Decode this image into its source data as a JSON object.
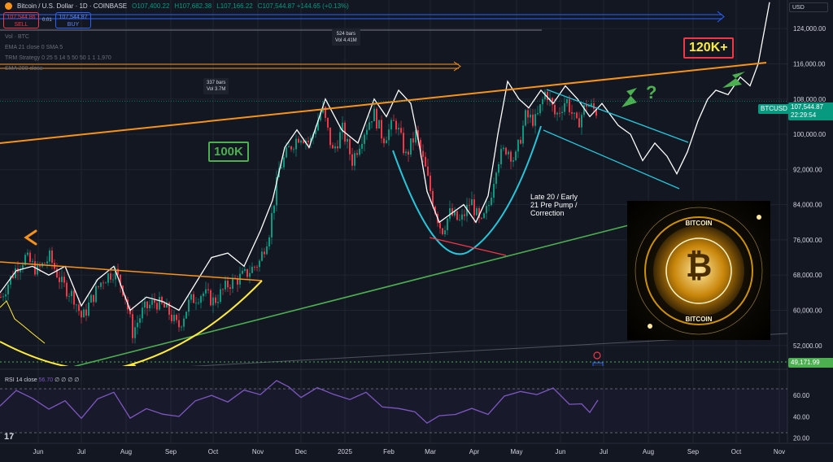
{
  "header": {
    "symbol": "Bitcoin / U.S. Dollar · 1D · COINBASE",
    "open": "O107,400.22",
    "high": "H107,682.38",
    "low": "L107,166.22",
    "close": "C107,544.87 +144.65 (+0.13%)"
  },
  "trade": {
    "sell_price": "107,544.86",
    "sell_label": "SELL",
    "spread": "0.01",
    "buy_price": "107,544.87",
    "buy_label": "BUY"
  },
  "indicators": {
    "vol": "Vol · BTC",
    "ema": "EMA 21 close 0 SMA 5",
    "trm": "TRM Strategy 0 25 5 14 5 50 50 1 1 1,970",
    "sma": "SMA 200 close"
  },
  "currency": "USD",
  "annotations": {
    "bars1": "524 bars",
    "vol1": "Vol 4.41M",
    "bars2": "337 bars",
    "vol2": "Vol 3.7M",
    "label_100k": "100K",
    "label_120k": "120K+",
    "question": "?",
    "note": "Late 20 / Early\n21 Pre Pump /\nCorrection",
    "coin_top": "BITCOIN",
    "coin_bottom": "BITCOIN",
    "coin_symbol": "₿"
  },
  "price_labels": {
    "symbol": "BTCUSD",
    "last": "107,544.87",
    "countdown": "22:29:54",
    "level": "49,171.99"
  },
  "rsi_header": {
    "title": "RSI 14 close",
    "value": "56.70",
    "extra": "∅ ∅ ∅ ∅"
  },
  "colors": {
    "bg": "#131722",
    "up": "#089981",
    "down": "#f23645",
    "orange": "#f7931a",
    "green": "#4caf50",
    "cyan": "#26c6da",
    "yellow": "#ffeb3b",
    "rsi": "#7e57c2"
  },
  "chart_data": {
    "type": "candlestick",
    "x_ticks": [
      "Jun",
      "Jul",
      "Aug",
      "Sep",
      "Oct",
      "Nov",
      "Dec",
      "2025",
      "Feb",
      "Mar",
      "Apr",
      "May",
      "Jun",
      "Jul",
      "Aug",
      "Sep",
      "Oct",
      "Nov"
    ],
    "y_ticks": [
      124000,
      116000,
      108000,
      100000,
      92000,
      84000,
      76000,
      68000,
      60000,
      52000
    ],
    "y_tick_labels": [
      "124,000.00",
      "116,000.00",
      "108,000.00",
      "100,000.00",
      "92,000.00",
      "84,000.00",
      "76,000.00",
      "68,000.00",
      "60,000.00",
      "52,000.00"
    ],
    "ylim": [
      46600,
      130500
    ],
    "last_price": 107544.87,
    "price_path": [
      [
        0,
        63000
      ],
      [
        20,
        70000
      ],
      [
        30,
        72000
      ],
      [
        45,
        69000
      ],
      [
        60,
        72000
      ],
      [
        75,
        66000
      ],
      [
        90,
        63000
      ],
      [
        100,
        58000
      ],
      [
        110,
        62000
      ],
      [
        125,
        67000
      ],
      [
        140,
        69000
      ],
      [
        152,
        64000
      ],
      [
        162,
        55000
      ],
      [
        175,
        60000
      ],
      [
        190,
        62000
      ],
      [
        205,
        60000
      ],
      [
        218,
        56000
      ],
      [
        232,
        62000
      ],
      [
        248,
        64000
      ],
      [
        262,
        62000
      ],
      [
        280,
        66000
      ],
      [
        300,
        68000
      ],
      [
        318,
        71000
      ],
      [
        330,
        78000
      ],
      [
        342,
        92000
      ],
      [
        355,
        97000
      ],
      [
        368,
        100000
      ],
      [
        380,
        98000
      ],
      [
        395,
        106000
      ],
      [
        408,
        96000
      ],
      [
        420,
        101000
      ],
      [
        432,
        94000
      ],
      [
        445,
        100000
      ],
      [
        458,
        105000
      ],
      [
        470,
        99000
      ],
      [
        485,
        103000
      ],
      [
        498,
        95000
      ],
      [
        510,
        100000
      ],
      [
        522,
        92000
      ],
      [
        532,
        84000
      ],
      [
        542,
        78000
      ],
      [
        552,
        82000
      ],
      [
        565,
        80000
      ],
      [
        578,
        85000
      ],
      [
        590,
        79000
      ],
      [
        600,
        84000
      ],
      [
        610,
        94000
      ],
      [
        622,
        97000
      ],
      [
        632,
        94000
      ],
      [
        645,
        104000
      ],
      [
        658,
        103000
      ],
      [
        670,
        110000
      ],
      [
        682,
        104000
      ],
      [
        695,
        108000
      ],
      [
        708,
        102000
      ],
      [
        720,
        107000
      ],
      [
        733,
        105000
      ]
    ],
    "overlay_line": [
      [
        0,
        64000
      ],
      [
        20,
        69000
      ],
      [
        40,
        70000
      ],
      [
        60,
        68000
      ],
      [
        80,
        70000
      ],
      [
        100,
        61000
      ],
      [
        120,
        67000
      ],
      [
        140,
        70000
      ],
      [
        160,
        60000
      ],
      [
        180,
        63000
      ],
      [
        200,
        62000
      ],
      [
        220,
        60000
      ],
      [
        240,
        66000
      ],
      [
        260,
        72000
      ],
      [
        280,
        73000
      ],
      [
        300,
        70000
      ],
      [
        320,
        78000
      ],
      [
        335,
        85000
      ],
      [
        350,
        97000
      ],
      [
        365,
        101000
      ],
      [
        380,
        97000
      ],
      [
        400,
        108000
      ],
      [
        420,
        101000
      ],
      [
        440,
        98000
      ],
      [
        460,
        108000
      ],
      [
        475,
        104000
      ],
      [
        490,
        110000
      ],
      [
        505,
        107000
      ],
      [
        515,
        98000
      ],
      [
        525,
        87000
      ],
      [
        540,
        80000
      ],
      [
        555,
        82000
      ],
      [
        570,
        84000
      ],
      [
        585,
        80000
      ],
      [
        600,
        86000
      ],
      [
        612,
        100000
      ],
      [
        624,
        112000
      ],
      [
        638,
        108000
      ],
      [
        650,
        106000
      ],
      [
        665,
        110000
      ],
      [
        680,
        107000
      ],
      [
        695,
        111000
      ],
      [
        710,
        108000
      ],
      [
        725,
        104000
      ],
      [
        740,
        107000
      ],
      [
        760,
        102000
      ],
      [
        775,
        100000
      ],
      [
        790,
        94000
      ],
      [
        805,
        98000
      ],
      [
        820,
        95000
      ],
      [
        832,
        91000
      ],
      [
        845,
        96000
      ],
      [
        858,
        103000
      ],
      [
        870,
        108000
      ],
      [
        880,
        110000
      ],
      [
        895,
        109000
      ],
      [
        910,
        113000
      ],
      [
        922,
        111000
      ],
      [
        932,
        116000
      ],
      [
        940,
        124000
      ],
      [
        946,
        130000
      ]
    ],
    "rsi": {
      "ylim": [
        15,
        80
      ],
      "y_ticks": [
        60,
        40,
        20
      ],
      "y_tick_labels": [
        "60.00",
        "40.00",
        "20.00"
      ],
      "values": [
        [
          0,
          50
        ],
        [
          20,
          62
        ],
        [
          40,
          55
        ],
        [
          60,
          48
        ],
        [
          80,
          58
        ],
        [
          100,
          40
        ],
        [
          120,
          55
        ],
        [
          140,
          60
        ],
        [
          160,
          38
        ],
        [
          180,
          50
        ],
        [
          200,
          45
        ],
        [
          220,
          40
        ],
        [
          240,
          52
        ],
        [
          260,
          58
        ],
        [
          280,
          55
        ],
        [
          300,
          68
        ],
        [
          320,
          62
        ],
        [
          340,
          72
        ],
        [
          355,
          68
        ],
        [
          370,
          60
        ],
        [
          390,
          66
        ],
        [
          410,
          58
        ],
        [
          430,
          55
        ],
        [
          450,
          65
        ],
        [
          470,
          52
        ],
        [
          490,
          48
        ],
        [
          510,
          42
        ],
        [
          525,
          35
        ],
        [
          540,
          42
        ],
        [
          560,
          40
        ],
        [
          580,
          45
        ],
        [
          600,
          42
        ],
        [
          620,
          62
        ],
        [
          640,
          66
        ],
        [
          660,
          60
        ],
        [
          680,
          64
        ],
        [
          700,
          50
        ],
        [
          715,
          55
        ],
        [
          725,
          42
        ],
        [
          735,
          56
        ]
      ]
    }
  }
}
